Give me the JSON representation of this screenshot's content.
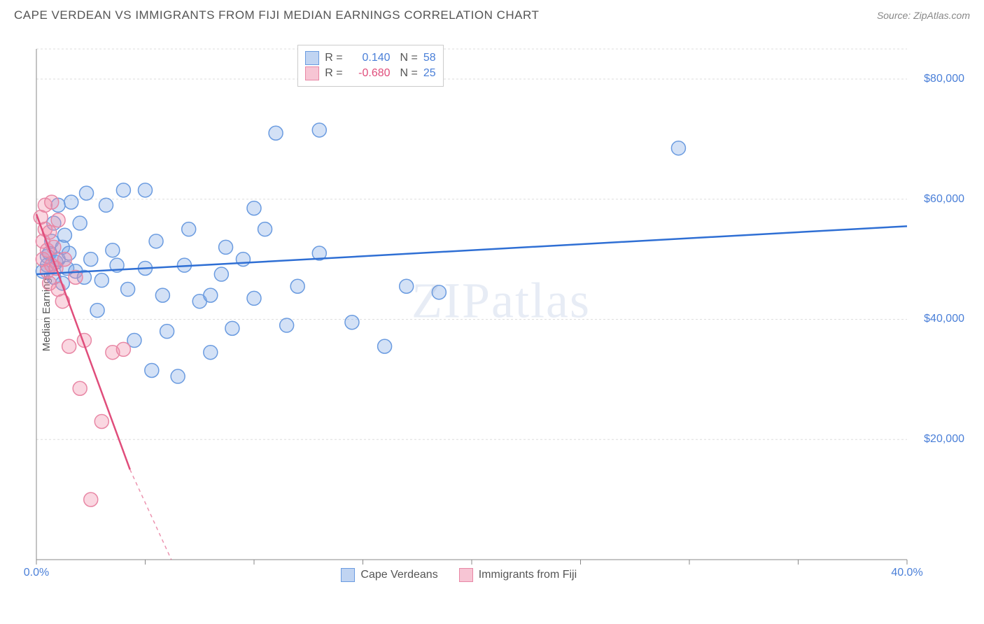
{
  "header": {
    "title": "CAPE VERDEAN VS IMMIGRANTS FROM FIJI MEDIAN EARNINGS CORRELATION CHART",
    "source": "Source: ZipAtlas.com"
  },
  "watermark": "ZIPatlas",
  "chart": {
    "type": "scatter",
    "ylabel": "Median Earnings",
    "background_color": "#ffffff",
    "grid_color": "#dddddd",
    "axis_color": "#888888",
    "xlim": [
      0,
      40
    ],
    "ylim": [
      0,
      85000
    ],
    "x_ticks": [
      0,
      40
    ],
    "x_tick_labels": [
      "0.0%",
      "40.0%"
    ],
    "x_minor_ticks": [
      5,
      10,
      15,
      20,
      25,
      30,
      35
    ],
    "y_ticks": [
      20000,
      40000,
      60000,
      80000
    ],
    "y_tick_labels": [
      "$20,000",
      "$40,000",
      "$60,000",
      "$80,000"
    ],
    "y_tick_color": "#4a7fd8",
    "x_tick_color": "#4a7fd8",
    "marker_radius": 10,
    "marker_stroke_width": 1.5,
    "trend_line_width": 2.5,
    "series": [
      {
        "name": "Cape Verdeans",
        "fill_color": "rgba(130,170,230,0.35)",
        "stroke_color": "#6a9be0",
        "trend_color": "#2f6fd4",
        "trend_start": [
          0,
          47500
        ],
        "trend_end": [
          40,
          55500
        ],
        "points": [
          [
            0.3,
            48000
          ],
          [
            0.5,
            49000
          ],
          [
            0.5,
            50500
          ],
          [
            0.6,
            51000
          ],
          [
            0.7,
            53000
          ],
          [
            0.8,
            47000
          ],
          [
            0.8,
            56000
          ],
          [
            0.9,
            49500
          ],
          [
            1.0,
            50000
          ],
          [
            1.0,
            59000
          ],
          [
            1.2,
            46000
          ],
          [
            1.2,
            52000
          ],
          [
            1.3,
            54000
          ],
          [
            1.4,
            48500
          ],
          [
            1.5,
            51000
          ],
          [
            1.6,
            59500
          ],
          [
            1.8,
            48000
          ],
          [
            2.0,
            56000
          ],
          [
            2.2,
            47000
          ],
          [
            2.3,
            61000
          ],
          [
            2.5,
            50000
          ],
          [
            2.8,
            41500
          ],
          [
            3.0,
            46500
          ],
          [
            3.2,
            59000
          ],
          [
            3.5,
            51500
          ],
          [
            3.7,
            49000
          ],
          [
            4.0,
            61500
          ],
          [
            4.2,
            45000
          ],
          [
            4.5,
            36500
          ],
          [
            5.0,
            48500
          ],
          [
            5.0,
            61500
          ],
          [
            5.3,
            31500
          ],
          [
            5.5,
            53000
          ],
          [
            5.8,
            44000
          ],
          [
            6.0,
            38000
          ],
          [
            6.5,
            30500
          ],
          [
            6.8,
            49000
          ],
          [
            7.0,
            55000
          ],
          [
            7.5,
            43000
          ],
          [
            8.0,
            34500
          ],
          [
            8.0,
            44000
          ],
          [
            8.5,
            47500
          ],
          [
            8.7,
            52000
          ],
          [
            9.0,
            38500
          ],
          [
            9.5,
            50000
          ],
          [
            10.0,
            58500
          ],
          [
            10.0,
            43500
          ],
          [
            10.5,
            55000
          ],
          [
            11.0,
            71000
          ],
          [
            11.5,
            39000
          ],
          [
            12.0,
            45500
          ],
          [
            13.0,
            71500
          ],
          [
            13.0,
            51000
          ],
          [
            14.5,
            39500
          ],
          [
            16.0,
            35500
          ],
          [
            17.0,
            45500
          ],
          [
            18.5,
            44500
          ],
          [
            29.5,
            68500
          ]
        ]
      },
      {
        "name": "Immigrants from Fiji",
        "fill_color": "rgba(240,140,170,0.35)",
        "stroke_color": "#e887a5",
        "trend_color": "#e04d7b",
        "trend_start": [
          0,
          57500
        ],
        "trend_end": [
          4.3,
          15000
        ],
        "trend_dashed_end": [
          6.2,
          0
        ],
        "points": [
          [
            0.2,
            57000
          ],
          [
            0.3,
            50000
          ],
          [
            0.3,
            53000
          ],
          [
            0.4,
            55000
          ],
          [
            0.4,
            59000
          ],
          [
            0.5,
            48000
          ],
          [
            0.5,
            51500
          ],
          [
            0.6,
            46000
          ],
          [
            0.6,
            54500
          ],
          [
            0.7,
            49000
          ],
          [
            0.7,
            59500
          ],
          [
            0.8,
            52000
          ],
          [
            0.9,
            48500
          ],
          [
            1.0,
            45000
          ],
          [
            1.0,
            56500
          ],
          [
            1.2,
            43000
          ],
          [
            1.3,
            50000
          ],
          [
            1.5,
            35500
          ],
          [
            1.8,
            47000
          ],
          [
            2.0,
            28500
          ],
          [
            2.2,
            36500
          ],
          [
            2.5,
            10000
          ],
          [
            3.0,
            23000
          ],
          [
            3.5,
            34500
          ],
          [
            4.0,
            35000
          ]
        ]
      }
    ],
    "stats_legend": {
      "rows": [
        {
          "swatch_fill": "rgba(130,170,230,0.5)",
          "swatch_stroke": "#6a9be0",
          "r_label": "R =",
          "r_value": "0.140",
          "r_color": "#4a7fd8",
          "n_label": "N =",
          "n_value": "58",
          "n_color": "#4a7fd8"
        },
        {
          "swatch_fill": "rgba(240,140,170,0.5)",
          "swatch_stroke": "#e887a5",
          "r_label": "R =",
          "r_value": "-0.680",
          "r_color": "#e04d7b",
          "n_label": "N =",
          "n_value": "25",
          "n_color": "#4a7fd8"
        }
      ]
    },
    "bottom_legend": {
      "items": [
        {
          "swatch_fill": "rgba(130,170,230,0.5)",
          "swatch_stroke": "#6a9be0",
          "label": "Cape Verdeans"
        },
        {
          "swatch_fill": "rgba(240,140,170,0.5)",
          "swatch_stroke": "#e887a5",
          "label": "Immigrants from Fiji"
        }
      ]
    }
  }
}
